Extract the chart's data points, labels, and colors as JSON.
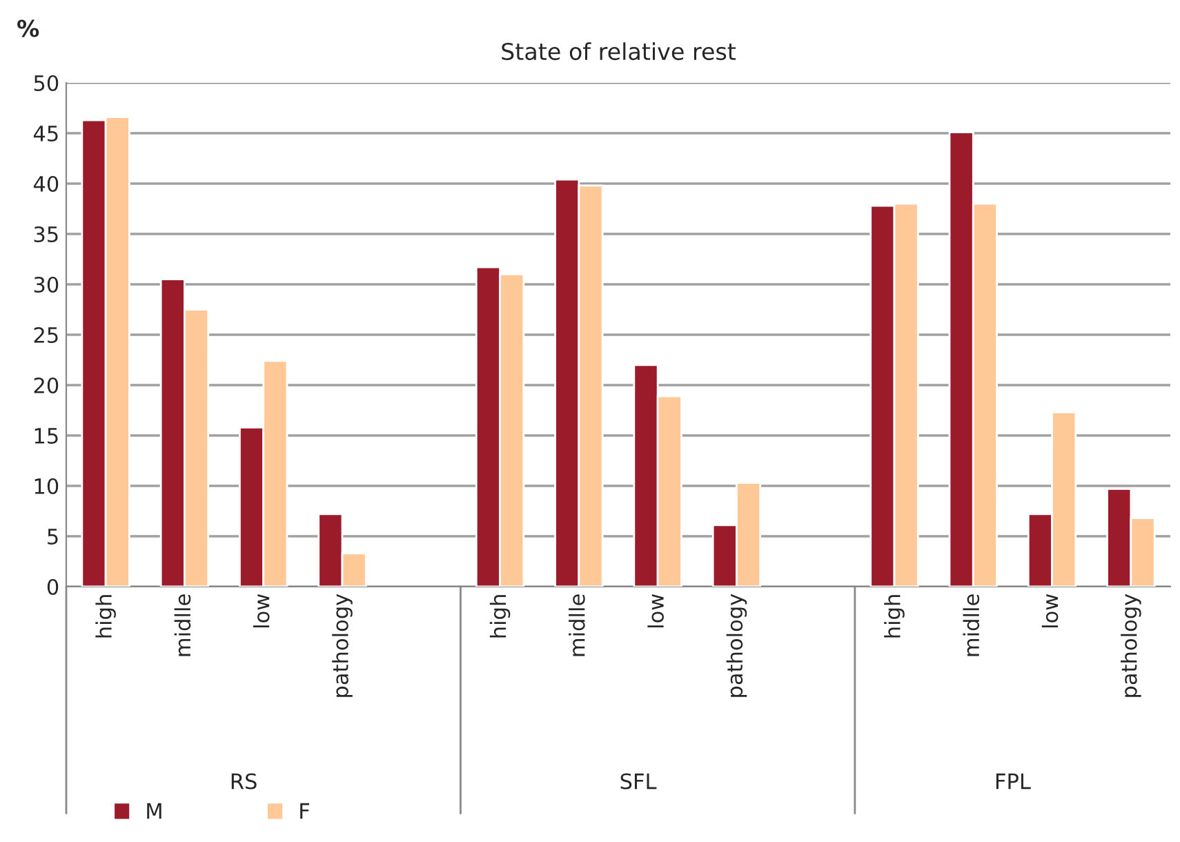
{
  "chart_data": {
    "type": "bar",
    "title": "State of relative rest",
    "ylabel": "%",
    "categories": [
      "high",
      "midlle",
      "low",
      "pathology",
      null,
      "high",
      "midlle",
      "low",
      "pathology",
      null,
      "high",
      "midlle",
      "low",
      "pathology"
    ],
    "series": [
      {
        "name": "M",
        "color": "#9b1b2a",
        "values": [
          46.3,
          30.5,
          15.8,
          7.2,
          null,
          31.7,
          40.4,
          22.0,
          6.1,
          null,
          37.8,
          45.1,
          7.2,
          9.7
        ]
      },
      {
        "name": "F",
        "color": "#ffc896",
        "values": [
          46.6,
          27.5,
          22.4,
          3.3,
          null,
          31.0,
          39.8,
          18.9,
          10.3,
          null,
          38.0,
          38.0,
          17.3,
          6.8
        ]
      }
    ],
    "annotations": [
      "RS",
      "SFL",
      "FPL"
    ],
    "ylim": [
      0,
      50
    ],
    "yticks": [
      0,
      5,
      10,
      15,
      20,
      25,
      30,
      35,
      40,
      45,
      50
    ],
    "grid": "y",
    "legend": "bottom left"
  }
}
